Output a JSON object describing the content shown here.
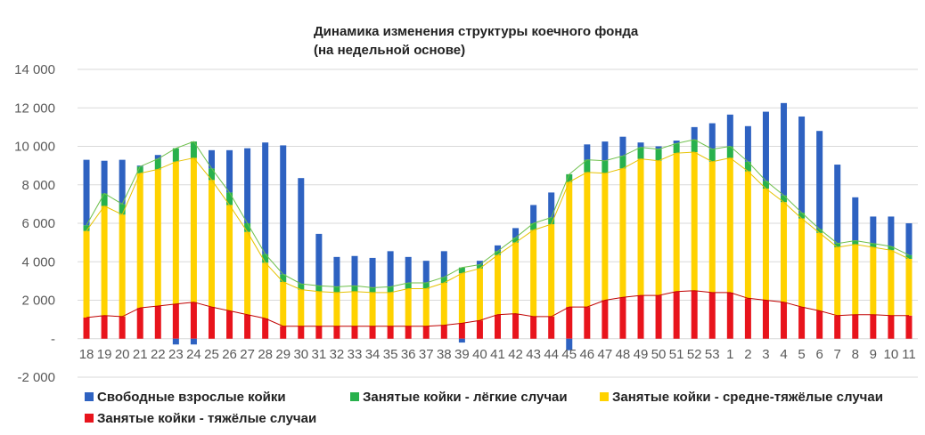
{
  "chart_data": {
    "type": "bar",
    "stacked": true,
    "title": "Динамика изменения структуры коечного фонда",
    "subtitle": "(на недельной основе)",
    "xlabel": "",
    "ylabel": "",
    "ylim": [
      -2000,
      14000
    ],
    "yticks": [
      -2000,
      0,
      2000,
      4000,
      6000,
      8000,
      10000,
      12000,
      14000
    ],
    "ytick_labels": [
      "-2 000",
      "-",
      "2 000",
      "4 000",
      "6 000",
      "8 000",
      "10 000",
      "12 000",
      "14 000"
    ],
    "grid": true,
    "legend_position": "bottom",
    "categories": [
      "18",
      "19",
      "20",
      "21",
      "22",
      "23",
      "24",
      "25",
      "26",
      "27",
      "28",
      "29",
      "30",
      "31",
      "32",
      "33",
      "34",
      "35",
      "36",
      "37",
      "38",
      "39",
      "40",
      "41",
      "42",
      "43",
      "44",
      "45",
      "46",
      "47",
      "48",
      "49",
      "50",
      "51",
      "52",
      "53",
      "1",
      "2",
      "3",
      "4",
      "5",
      "6",
      "7",
      "8",
      "9",
      "10",
      "11"
    ],
    "series": [
      {
        "name": "Свободные взрослые койки",
        "color": "#2e62c1",
        "values": [
          3400,
          1700,
          2300,
          50,
          200,
          -300,
          -300,
          950,
          2200,
          3900,
          5800,
          6700,
          5500,
          2700,
          1550,
          1550,
          1550,
          1850,
          1350,
          1150,
          1350,
          -200,
          200,
          300,
          500,
          950,
          1300,
          -600,
          800,
          1000,
          1000,
          250,
          150,
          150,
          650,
          1350,
          1650,
          1850,
          3600,
          4800,
          5000,
          5100,
          4100,
          2250,
          1400,
          1550,
          1650
        ]
      },
      {
        "name": "Занятые койки - лёгкие случаи",
        "color": "#28b14c",
        "values": [
          300,
          650,
          550,
          350,
          550,
          700,
          850,
          600,
          650,
          450,
          450,
          400,
          300,
          300,
          300,
          300,
          250,
          300,
          300,
          300,
          300,
          300,
          200,
          200,
          250,
          350,
          350,
          400,
          650,
          650,
          650,
          600,
          600,
          500,
          650,
          650,
          600,
          500,
          400,
          350,
          300,
          200,
          200,
          200,
          200,
          200,
          200
        ]
      },
      {
        "name": "Занятые койки - средне-тяжёлые случаи",
        "color": "#ffd200",
        "values": [
          4500,
          5700,
          5300,
          7000,
          7100,
          7400,
          7500,
          6600,
          5500,
          4300,
          2900,
          2300,
          1900,
          1800,
          1750,
          1800,
          1750,
          1750,
          1950,
          1950,
          2200,
          2600,
          2700,
          3100,
          3700,
          4500,
          4800,
          6500,
          7000,
          6600,
          6700,
          7100,
          7000,
          7200,
          7200,
          6800,
          7000,
          6600,
          5800,
          5200,
          4600,
          4050,
          3550,
          3650,
          3500,
          3400,
          2950
        ]
      },
      {
        "name": "Занятые койки - тяжёлые случаи",
        "color": "#e8141c",
        "values": [
          1100,
          1200,
          1150,
          1600,
          1700,
          1800,
          1900,
          1650,
          1450,
          1250,
          1050,
          650,
          650,
          650,
          650,
          650,
          650,
          650,
          650,
          650,
          700,
          800,
          950,
          1250,
          1300,
          1150,
          1150,
          1650,
          1650,
          2000,
          2150,
          2250,
          2250,
          2450,
          2500,
          2400,
          2400,
          2100,
          2000,
          1900,
          1650,
          1450,
          1200,
          1250,
          1250,
          1200,
          1200
        ]
      }
    ]
  }
}
